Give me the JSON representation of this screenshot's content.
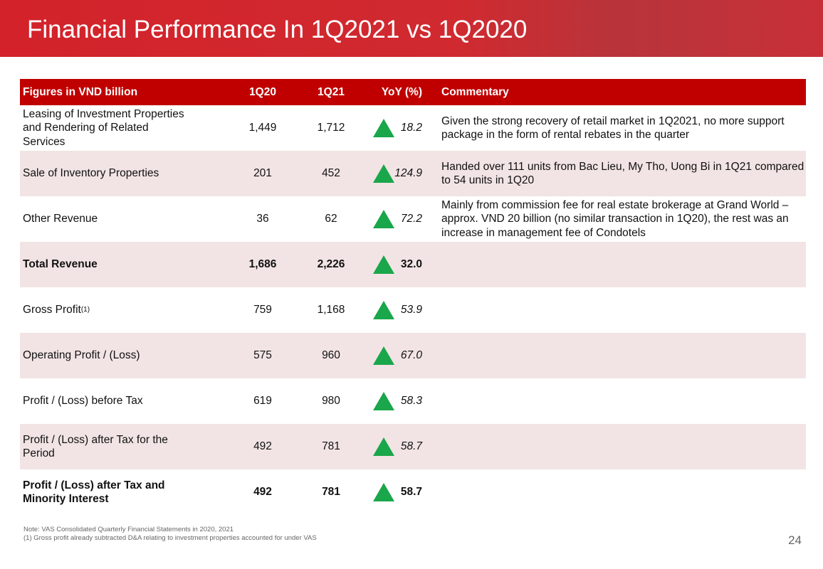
{
  "header": {
    "title": "Financial Performance In 1Q2021 vs 1Q2020"
  },
  "table": {
    "columns": [
      "Figures in VND billion",
      "1Q20",
      "1Q21",
      "YoY (%)",
      "Commentary"
    ],
    "rows": [
      {
        "label": "Leasing of Investment Properties and Rendering of Related Services",
        "q1_20": "1,449",
        "q1_21": "1,712",
        "yoy": "18.2",
        "commentary": "Given the strong recovery of retail market in 1Q2021, no more support package in the form of rental rebates in the quarter"
      },
      {
        "label": "Sale of Inventory Properties",
        "q1_20": "201",
        "q1_21": "452",
        "yoy": "124.9",
        "commentary": "Handed over 111 units from Bac Lieu, My Tho, Uong Bi in 1Q21 compared to 54 units in 1Q20"
      },
      {
        "label": "Other Revenue",
        "q1_20": "36",
        "q1_21": "62",
        "yoy": "72.2",
        "commentary": "Mainly from commission fee for real estate brokerage at Grand World – approx. VND 20 billion (no similar transaction in 1Q20), the rest was an increase in management fee of Condotels"
      },
      {
        "label": "Total Revenue",
        "q1_20": "1,686",
        "q1_21": "2,226",
        "yoy": "32.0",
        "bold": true
      },
      {
        "label": "Gross Profit",
        "sup": "(1)",
        "q1_20": "759",
        "q1_21": "1,168",
        "yoy": "53.9"
      },
      {
        "label": "Operating Profit / (Loss)",
        "q1_20": "575",
        "q1_21": "960",
        "yoy": "67.0"
      },
      {
        "label": "Profit / (Loss) before Tax",
        "q1_20": "619",
        "q1_21": "980",
        "yoy": "58.3"
      },
      {
        "label": "Profit / (Loss) after Tax for the Period",
        "q1_20": "492",
        "q1_21": "781",
        "yoy": "58.7"
      },
      {
        "label": "Profit / (Loss) after Tax and Minority Interest",
        "q1_20": "492",
        "q1_21": "781",
        "yoy": "58.7",
        "bold": true
      }
    ]
  },
  "notes": [
    "Note: VAS Consolidated Quarterly Financial Statements in 2020, 2021",
    "(1) Gross profit already subtracted D&A relating to investment properties accounted for under VAS"
  ],
  "page_number": "24"
}
